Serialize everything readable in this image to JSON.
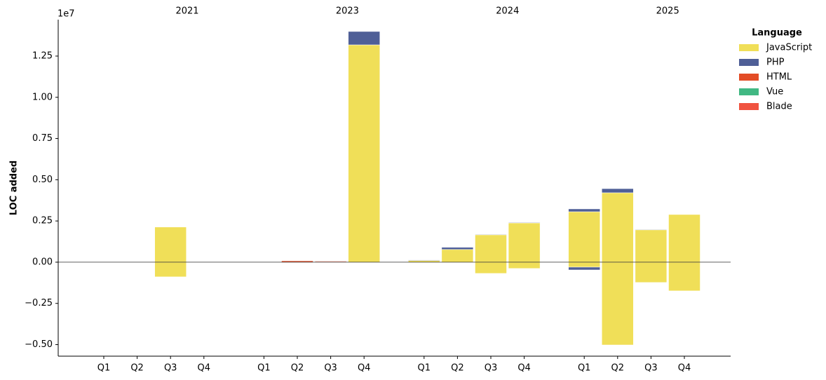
{
  "chart_data": {
    "type": "stacked-bar",
    "y_label": "LOC added",
    "y_offset_label": "1e7",
    "legend_title": "Language",
    "legend_position": "upper right outside",
    "groups": [
      {
        "label": "2021",
        "categories": [
          "Q1",
          "Q2",
          "Q3",
          "Q4"
        ]
      },
      {
        "label": "2023",
        "categories": [
          "Q1",
          "Q2",
          "Q3",
          "Q4"
        ]
      },
      {
        "label": "2024",
        "categories": [
          "Q1",
          "Q2",
          "Q3",
          "Q4"
        ]
      },
      {
        "label": "2025",
        "categories": [
          "Q1",
          "Q2",
          "Q3",
          "Q4"
        ]
      }
    ],
    "series": [
      {
        "name": "JavaScript",
        "color": "#f0df58",
        "values": [
          0,
          0,
          0.213,
          0,
          0,
          0,
          0,
          1.318,
          0.01,
          0.077,
          0.166,
          0.238,
          0.306,
          0.421,
          0.196,
          0.289
        ],
        "negative_values": [
          0,
          0,
          -0.089,
          0,
          0,
          0,
          0,
          0,
          0,
          0,
          -0.068,
          -0.038,
          -0.03,
          -0.502,
          -0.123,
          -0.174
        ]
      },
      {
        "name": "PHP",
        "color": "#4f5f97",
        "values": [
          0,
          0,
          0,
          0,
          0,
          0,
          0.002,
          0.081,
          0.003,
          0.013,
          0.003,
          0.003,
          0.017,
          0.025,
          0.003,
          0
        ],
        "negative_values": [
          0,
          0,
          0,
          0,
          0,
          0,
          0,
          0,
          0,
          0,
          0,
          0,
          -0.017,
          0,
          0,
          0
        ]
      },
      {
        "name": "HTML",
        "color": "#e34c26",
        "values": [
          0,
          0,
          0,
          0,
          0,
          0.008,
          0.004,
          0,
          0,
          0,
          0,
          0,
          0,
          0,
          0,
          0
        ],
        "negative_values": [
          0,
          0,
          0,
          0,
          0,
          0,
          0,
          0,
          0,
          0,
          0,
          0,
          0,
          0,
          0,
          0
        ]
      },
      {
        "name": "Vue",
        "color": "#41b883",
        "values": [
          0,
          0,
          0,
          0,
          0,
          0,
          0,
          0,
          0,
          0,
          0,
          0,
          0,
          0,
          0,
          0
        ],
        "negative_values": [
          0,
          0,
          0,
          0,
          0,
          0,
          0,
          0,
          0,
          0,
          0,
          0,
          0,
          0,
          0,
          0
        ]
      },
      {
        "name": "Blade",
        "color": "#f05340",
        "values": [
          0,
          0,
          0,
          0,
          0,
          0,
          0,
          0,
          0,
          0,
          0,
          0,
          0,
          0,
          0,
          0
        ],
        "negative_values": [
          0,
          0,
          0,
          0,
          0,
          0,
          0,
          0,
          0,
          0,
          0,
          0,
          0,
          0,
          0,
          0
        ]
      }
    ],
    "ylim": [
      -0.57,
      1.471
    ],
    "yticks": [
      {
        "value": -0.5,
        "label": "−0.50"
      },
      {
        "value": -0.25,
        "label": "−0.25"
      },
      {
        "value": 0,
        "label": "0.00"
      },
      0.25,
      {
        "value": 0.5,
        "label": "0.50"
      },
      0.75,
      {
        "value": 1,
        "label": "1.00"
      },
      1.25
    ]
  }
}
